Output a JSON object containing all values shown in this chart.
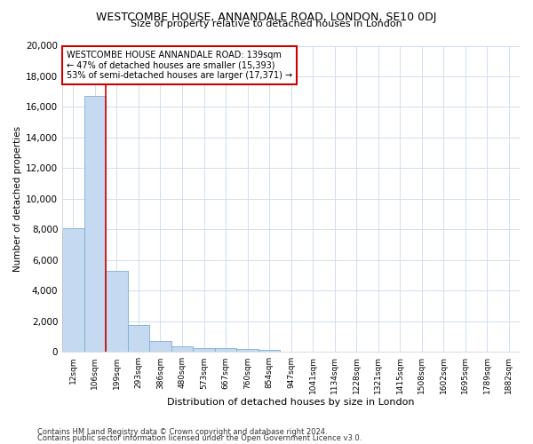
{
  "title": "WESTCOMBE HOUSE, ANNANDALE ROAD, LONDON, SE10 0DJ",
  "subtitle": "Size of property relative to detached houses in London",
  "xlabel": "Distribution of detached houses by size in London",
  "ylabel": "Number of detached properties",
  "bar_color": "#c5d9f0",
  "bar_edge_color": "#7bafd4",
  "grid_color": "#d0dff0",
  "vline_color": "#cc0000",
  "vline_x": 1.5,
  "categories": [
    "12sqm",
    "106sqm",
    "199sqm",
    "293sqm",
    "386sqm",
    "480sqm",
    "573sqm",
    "667sqm",
    "760sqm",
    "854sqm",
    "947sqm",
    "1041sqm",
    "1134sqm",
    "1228sqm",
    "1321sqm",
    "1415sqm",
    "1508sqm",
    "1602sqm",
    "1695sqm",
    "1789sqm",
    "1882sqm"
  ],
  "values": [
    8100,
    16700,
    5300,
    1750,
    700,
    370,
    280,
    230,
    200,
    150,
    0,
    0,
    0,
    0,
    0,
    0,
    0,
    0,
    0,
    0,
    0
  ],
  "ylim": [
    0,
    20000
  ],
  "yticks": [
    0,
    2000,
    4000,
    6000,
    8000,
    10000,
    12000,
    14000,
    16000,
    18000,
    20000
  ],
  "annotation_title": "WESTCOMBE HOUSE ANNANDALE ROAD: 139sqm",
  "annotation_line2": "← 47% of detached houses are smaller (15,393)",
  "annotation_line3": "53% of semi-detached houses are larger (17,371) →",
  "annotation_box_color": "#ffffff",
  "annotation_box_edge": "#cc0000",
  "footnote1": "Contains HM Land Registry data © Crown copyright and database right 2024.",
  "footnote2": "Contains public sector information licensed under the Open Government Licence v3.0.",
  "background_color": "#ffffff",
  "figsize": [
    6.0,
    5.0
  ],
  "dpi": 100
}
